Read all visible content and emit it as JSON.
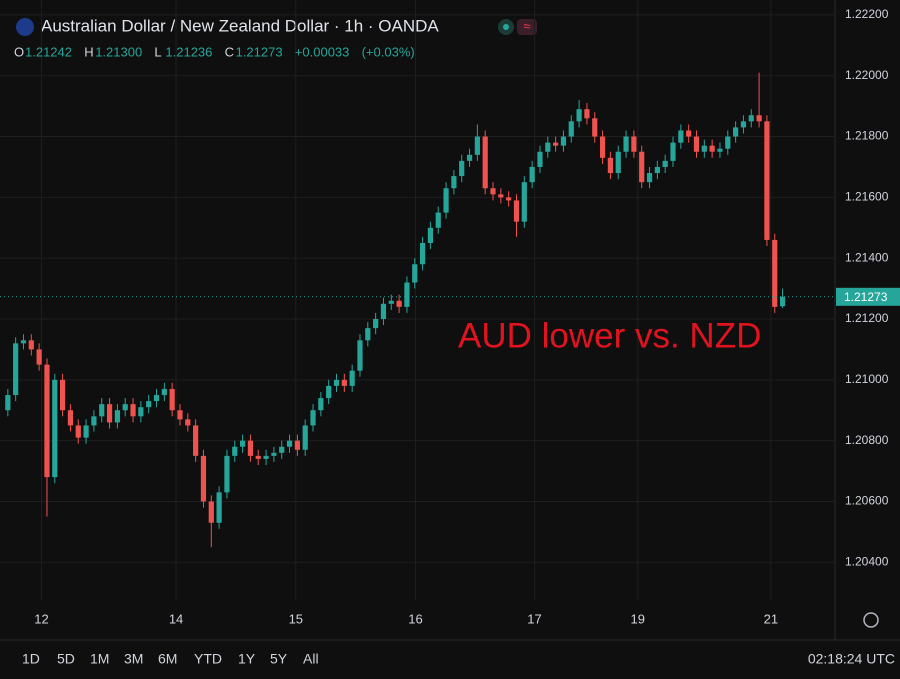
{
  "header": {
    "title": "Australian Dollar / New Zealand Dollar · 1h · OANDA",
    "ohlc_letters": [
      "O",
      "H",
      "L",
      "C"
    ],
    "ohlc": [
      1.21242,
      1.213,
      1.21236,
      1.21273
    ],
    "ohlc_labels": [
      "1.21242",
      "1.21300",
      "1.21236",
      "1.21273"
    ],
    "change": {
      "value": 0.00033,
      "label": "+0.00033"
    },
    "change_pct": {
      "value": 0.03,
      "label": "(+0.03%)"
    }
  },
  "chart_data": {
    "type": "candlestick",
    "annotation": "AUD lower vs. NZD",
    "up_color": "#26a69a",
    "down_color": "#ef5350",
    "last_price": {
      "value": 1.21273,
      "label": "1.21273"
    },
    "xlim": [
      -1,
      105.7
    ],
    "xticks": [
      {
        "value": 4.3,
        "label": "12"
      },
      {
        "value": 21.5,
        "label": "14"
      },
      {
        "value": 36.8,
        "label": "15"
      },
      {
        "value": 52.1,
        "label": "16"
      },
      {
        "value": 67.3,
        "label": "17"
      },
      {
        "value": 80.5,
        "label": "19"
      },
      {
        "value": 97.5,
        "label": "21"
      }
    ],
    "ylim": [
      1.20276,
      1.22249
    ],
    "yticks": [
      {
        "value": 1.222,
        "label": "1.22200"
      },
      {
        "value": 1.22,
        "label": "1.22000"
      },
      {
        "value": 1.218,
        "label": "1.21800"
      },
      {
        "value": 1.216,
        "label": "1.21600"
      },
      {
        "value": 1.214,
        "label": "1.21400"
      },
      {
        "value": 1.212,
        "label": "1.21200"
      },
      {
        "value": 1.21,
        "label": "1.21000"
      },
      {
        "value": 1.208,
        "label": "1.20800"
      },
      {
        "value": 1.206,
        "label": "1.20600"
      },
      {
        "value": 1.204,
        "label": "1.20400"
      }
    ],
    "grid": true,
    "open": [
      1.209,
      1.2095,
      1.2112,
      1.2113,
      1.211,
      1.2105,
      1.2068,
      1.21,
      1.209,
      1.2085,
      1.2081,
      1.2085,
      1.2088,
      1.2092,
      1.2086,
      1.209,
      1.2092,
      1.2088,
      1.2091,
      1.2093,
      1.2095,
      1.2097,
      1.209,
      1.2087,
      1.2085,
      1.2075,
      1.206,
      1.2053,
      1.2063,
      1.2075,
      1.2078,
      1.208,
      1.2075,
      1.2074,
      1.2075,
      1.2076,
      1.2078,
      1.208,
      1.2077,
      1.2085,
      1.209,
      1.2094,
      1.2098,
      1.21,
      1.2098,
      1.2103,
      1.2113,
      1.2117,
      1.212,
      1.2125,
      1.2126,
      1.2124,
      1.2132,
      1.2138,
      1.2145,
      1.215,
      1.2155,
      1.2163,
      1.2167,
      1.2172,
      1.2174,
      1.218,
      1.2163,
      1.2161,
      1.216,
      1.2159,
      1.2152,
      1.2165,
      1.217,
      1.2175,
      1.2178,
      1.2177,
      1.218,
      1.2185,
      1.2189,
      1.2186,
      1.218,
      1.2173,
      1.2168,
      1.2175,
      1.218,
      1.2175,
      1.2165,
      1.2168,
      1.217,
      1.2172,
      1.2178,
      1.2182,
      1.218,
      1.2175,
      1.2177,
      1.2175,
      1.2176,
      1.218,
      1.2183,
      1.2185,
      1.2187,
      1.2185,
      1.2146,
      1.21242
    ],
    "high": [
      1.2097,
      1.2114,
      1.2115,
      1.2115,
      1.2112,
      1.2107,
      1.2102,
      1.2102,
      1.2092,
      1.2087,
      1.2087,
      1.209,
      1.2094,
      1.2094,
      1.2092,
      1.2094,
      1.2094,
      1.2093,
      1.2095,
      1.2097,
      1.2099,
      1.2099,
      1.2092,
      1.2089,
      1.2087,
      1.2077,
      1.2062,
      1.2065,
      1.2077,
      1.208,
      1.2082,
      1.2082,
      1.2077,
      1.2077,
      1.2078,
      1.208,
      1.2082,
      1.2082,
      1.2087,
      1.2092,
      1.2096,
      1.21,
      1.2102,
      1.2102,
      1.2105,
      1.2115,
      1.2119,
      1.2122,
      1.2127,
      1.2128,
      1.2128,
      1.2134,
      1.214,
      1.2147,
      1.2152,
      1.2157,
      1.2165,
      1.2169,
      1.2174,
      1.2176,
      1.2184,
      1.2182,
      1.2165,
      1.2163,
      1.2162,
      1.2161,
      1.2167,
      1.2172,
      1.2177,
      1.218,
      1.218,
      1.2182,
      1.2187,
      1.2192,
      1.2191,
      1.2188,
      1.2182,
      1.2175,
      1.2177,
      1.2182,
      1.2182,
      1.2177,
      1.217,
      1.2172,
      1.2174,
      1.218,
      1.2184,
      1.2184,
      1.2182,
      1.2179,
      1.2179,
      1.2178,
      1.2182,
      1.2185,
      1.2187,
      1.2189,
      1.2201,
      1.2187,
      1.2148,
      1.213
    ],
    "low": [
      1.2088,
      1.2093,
      1.211,
      1.2108,
      1.2103,
      1.2055,
      1.2066,
      1.2088,
      1.2083,
      1.2079,
      1.2079,
      1.2083,
      1.2086,
      1.2084,
      1.2084,
      1.2088,
      1.2086,
      1.2086,
      1.2089,
      1.2091,
      1.2093,
      1.2088,
      1.2085,
      1.2083,
      1.2073,
      1.2058,
      1.2045,
      1.2051,
      1.2061,
      1.2073,
      1.2076,
      1.2073,
      1.2072,
      1.2072,
      1.2073,
      1.2074,
      1.2076,
      1.2075,
      1.2075,
      1.2083,
      1.2088,
      1.2092,
      1.2096,
      1.2096,
      1.2096,
      1.2101,
      1.2111,
      1.2115,
      1.2118,
      1.2123,
      1.2122,
      1.2122,
      1.213,
      1.2136,
      1.2143,
      1.2148,
      1.2153,
      1.2161,
      1.2165,
      1.217,
      1.2172,
      1.2161,
      1.2159,
      1.2158,
      1.2157,
      1.2147,
      1.215,
      1.2163,
      1.2168,
      1.2173,
      1.2175,
      1.2175,
      1.2178,
      1.2183,
      1.2184,
      1.2178,
      1.2171,
      1.2166,
      1.2166,
      1.2173,
      1.2173,
      1.2163,
      1.2163,
      1.2166,
      1.2168,
      1.217,
      1.2176,
      1.2178,
      1.2173,
      1.2173,
      1.2173,
      1.2173,
      1.2174,
      1.2178,
      1.2181,
      1.2183,
      1.2183,
      1.2144,
      1.2122,
      1.21236
    ],
    "close": [
      1.2095,
      1.2112,
      1.2113,
      1.211,
      1.2105,
      1.2068,
      1.21,
      1.209,
      1.2085,
      1.2081,
      1.2085,
      1.2088,
      1.2092,
      1.2086,
      1.209,
      1.2092,
      1.2088,
      1.2091,
      1.2093,
      1.2095,
      1.2097,
      1.209,
      1.2087,
      1.2085,
      1.2075,
      1.206,
      1.2053,
      1.2063,
      1.2075,
      1.2078,
      1.208,
      1.2075,
      1.2074,
      1.2075,
      1.2076,
      1.2078,
      1.208,
      1.2077,
      1.2085,
      1.209,
      1.2094,
      1.2098,
      1.21,
      1.2098,
      1.2103,
      1.2113,
      1.2117,
      1.212,
      1.2125,
      1.2126,
      1.2124,
      1.2132,
      1.2138,
      1.2145,
      1.215,
      1.2155,
      1.2163,
      1.2167,
      1.2172,
      1.2174,
      1.218,
      1.2163,
      1.2161,
      1.216,
      1.2159,
      1.2152,
      1.2165,
      1.217,
      1.2175,
      1.2178,
      1.2177,
      1.218,
      1.2185,
      1.2189,
      1.2186,
      1.218,
      1.2173,
      1.2168,
      1.2175,
      1.218,
      1.2175,
      1.2165,
      1.2168,
      1.217,
      1.2172,
      1.2178,
      1.2182,
      1.218,
      1.2175,
      1.2177,
      1.2175,
      1.2176,
      1.218,
      1.2183,
      1.2185,
      1.2187,
      1.2185,
      1.2146,
      1.2124,
      1.21273
    ]
  },
  "footer": {
    "ranges": [
      "1D",
      "5D",
      "1M",
      "3M",
      "6M",
      "YTD",
      "1Y",
      "5Y",
      "All"
    ],
    "clock": "02:18:24 UTC"
  }
}
